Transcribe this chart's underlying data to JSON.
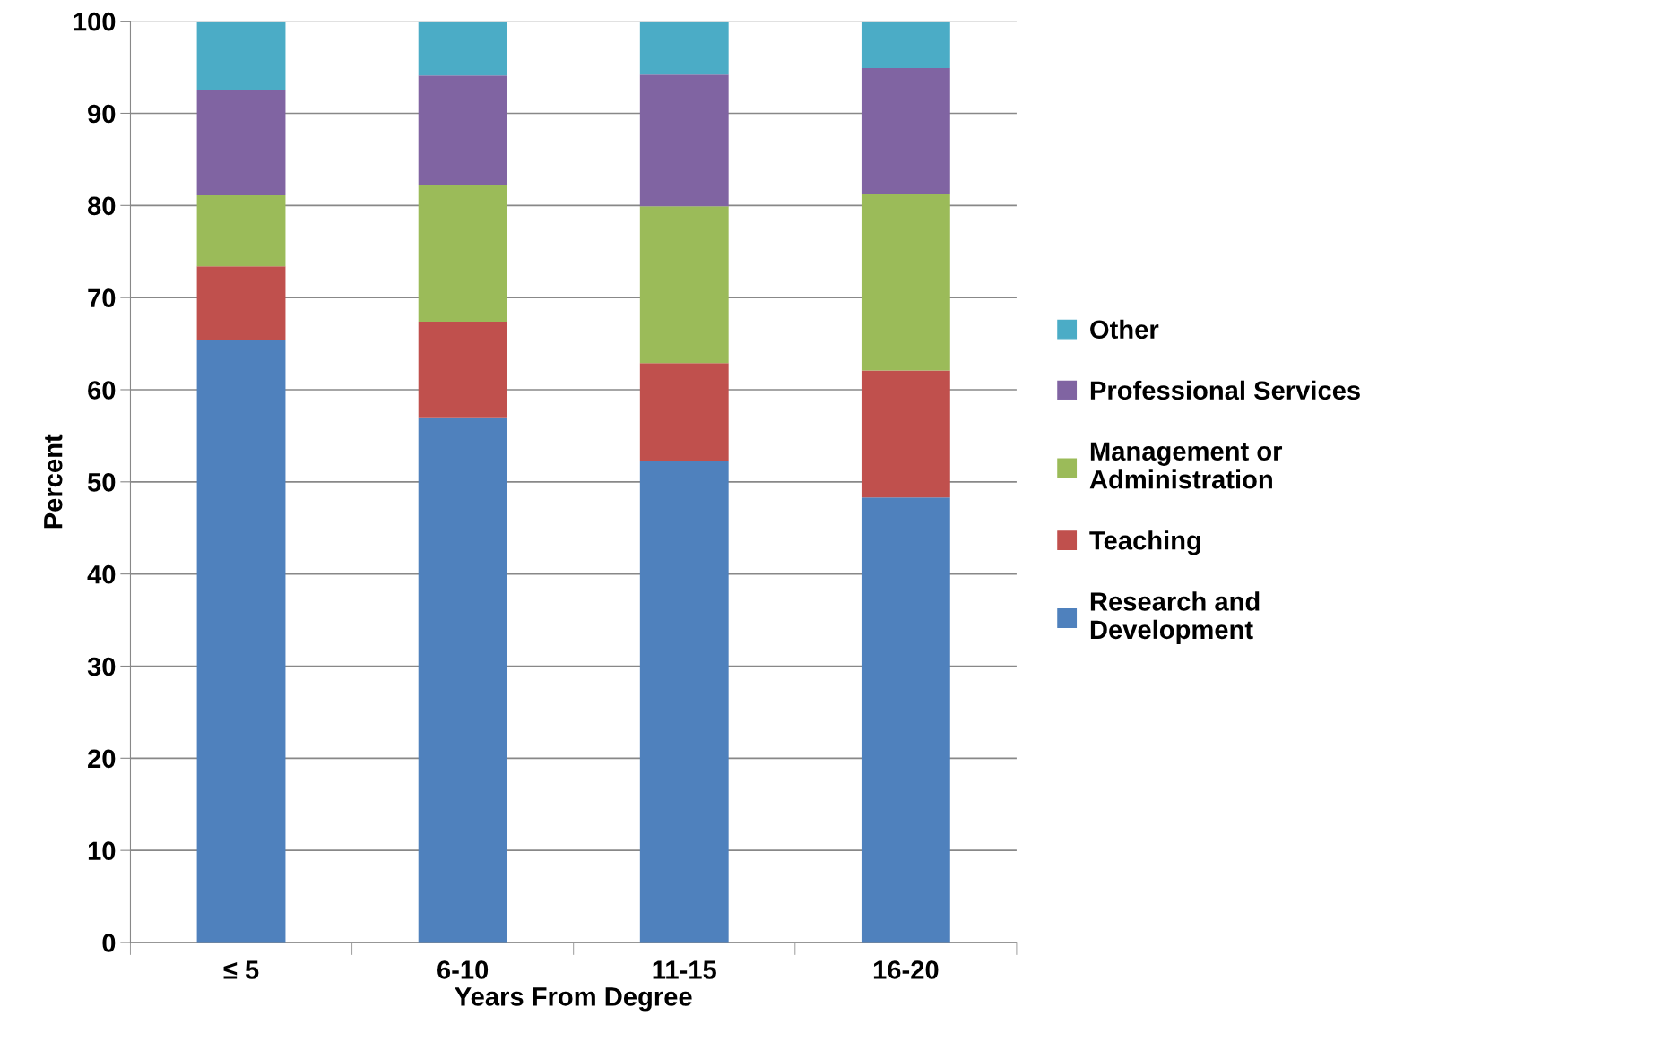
{
  "chart_data": {
    "type": "bar",
    "stacked": true,
    "xlabel": "Years From Degree",
    "ylabel": "Percent",
    "categories": [
      "≤ 5",
      "6-10",
      "11-15",
      "16-20"
    ],
    "series": [
      {
        "name": "Research and\nDevelopment",
        "color": "#4f81bd",
        "values": [
          65.4,
          57.0,
          52.3,
          48.3
        ]
      },
      {
        "name": "Teaching",
        "color": "#c0504d",
        "values": [
          8.0,
          10.4,
          10.6,
          13.8
        ]
      },
      {
        "name": "Management or\nAdministration",
        "color": "#9bbb59",
        "values": [
          7.7,
          14.8,
          17.0,
          19.2
        ]
      },
      {
        "name": "Professional Services",
        "color": "#8064a2",
        "values": [
          11.4,
          11.9,
          14.3,
          13.6
        ]
      },
      {
        "name": "Other",
        "color": "#4bacc6",
        "values": [
          7.5,
          5.9,
          5.8,
          5.1
        ]
      }
    ],
    "ylim": [
      0,
      100
    ],
    "yticks": [
      0,
      10,
      20,
      30,
      40,
      50,
      60,
      70,
      80,
      90,
      100
    ],
    "grid": "y",
    "legend": "right"
  }
}
